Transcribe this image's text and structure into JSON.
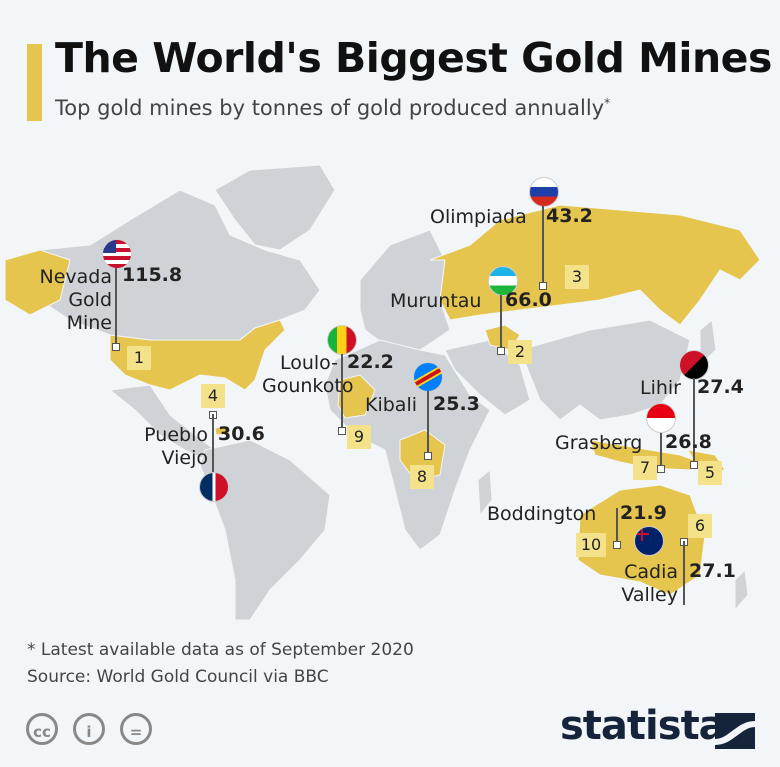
{
  "header": {
    "title": "The World's Biggest Gold Mines",
    "subtitle": "Top gold mines by tonnes of gold produced annually",
    "subtitle_mark": "*"
  },
  "colors": {
    "accent": "#e6c54f",
    "land": "#cfd3d7",
    "highlight": "#e6c54f",
    "rank_box": "#f4e28b"
  },
  "mines": [
    {
      "rank": "1",
      "name_lines": [
        "Nevada",
        "Gold",
        "Mine"
      ],
      "value": "115.8",
      "country": "United States"
    },
    {
      "rank": "2",
      "name_lines": [
        "Muruntau"
      ],
      "value": "66.0",
      "country": "Uzbekistan"
    },
    {
      "rank": "3",
      "name_lines": [
        "Olimpiada"
      ],
      "value": "43.2",
      "country": "Russia"
    },
    {
      "rank": "4",
      "name_lines": [
        "Pueblo",
        "Viejo"
      ],
      "value": "30.6",
      "country": "Dominican Republic"
    },
    {
      "rank": "5",
      "name_lines": [
        "Lihir"
      ],
      "value": "27.4",
      "country": "Papua New Guinea"
    },
    {
      "rank": "6",
      "name_lines": [
        "Cadia",
        "Valley"
      ],
      "value": "27.1",
      "country": "Australia"
    },
    {
      "rank": "7",
      "name_lines": [
        "Grasberg"
      ],
      "value": "26.8",
      "country": "Indonesia"
    },
    {
      "rank": "8",
      "name_lines": [
        "Kibali"
      ],
      "value": "25.3",
      "country": "DR Congo"
    },
    {
      "rank": "9",
      "name_lines": [
        "Loulo-",
        "Gounkoto"
      ],
      "value": "22.2",
      "country": "Mali"
    },
    {
      "rank": "10",
      "name_lines": [
        "Boddington"
      ],
      "value": "21.9",
      "country": "Australia"
    }
  ],
  "footer": {
    "note": "* Latest available data as of September 2020",
    "source": "Source: World Gold Council via BBC",
    "brand": "statista",
    "license_icons": [
      "cc",
      "by",
      "nd"
    ]
  }
}
